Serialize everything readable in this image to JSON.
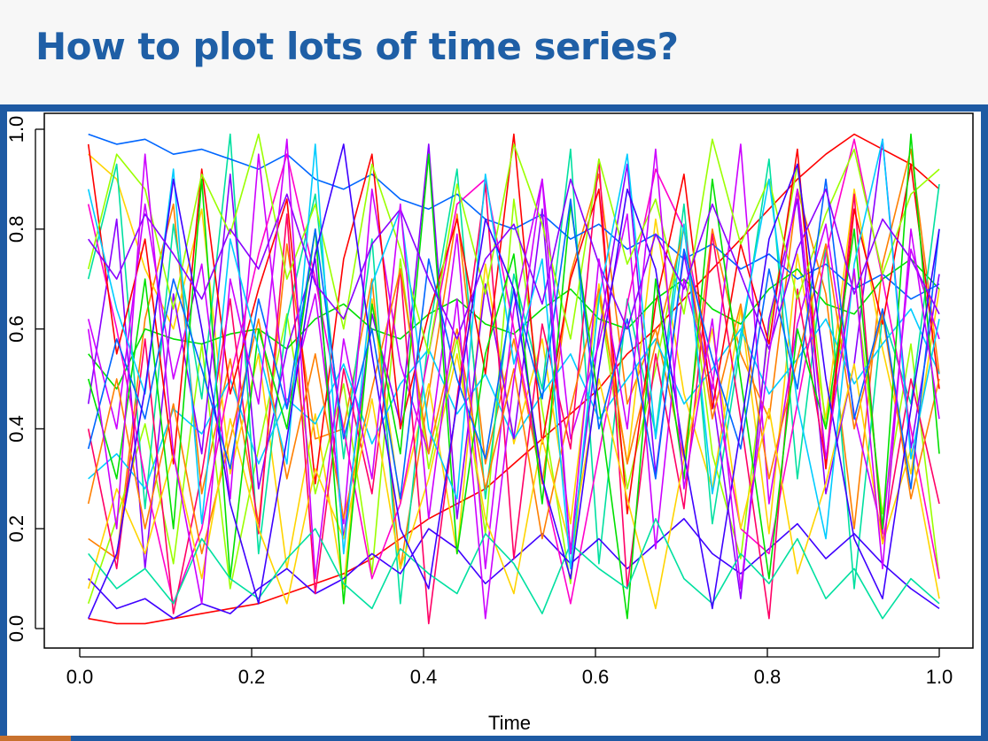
{
  "slide": {
    "title": "How to plot lots of time series?"
  },
  "colors": {
    "title": "#1f5fa6",
    "frame": "#1e5aa3",
    "header_bg": "#f7f7f7"
  },
  "chart_data": {
    "type": "line",
    "title": "",
    "xlabel": "Time",
    "ylabel": "",
    "xlim": [
      0.0,
      1.0
    ],
    "ylim": [
      0.0,
      1.0
    ],
    "x_ticks": [
      "0.0",
      "0.2",
      "0.4",
      "0.6",
      "0.8",
      "1.0"
    ],
    "y_ticks": [
      "0.0",
      "0.2",
      "0.4",
      "0.6",
      "0.8",
      "1.0"
    ],
    "grid": false,
    "legend": "none",
    "palette": [
      "#ff0000",
      "#ff7f00",
      "#ffd400",
      "#9aff00",
      "#00e000",
      "#00e0a0",
      "#00ccff",
      "#0066ff",
      "#3f00ff",
      "#8a00ff",
      "#cc00ff",
      "#ff00cc",
      "#ff0066"
    ],
    "series": [
      {
        "values": [
          0.02,
          0.01,
          0.01,
          0.02,
          0.03,
          0.04,
          0.05,
          0.07,
          0.09,
          0.11,
          0.14,
          0.18,
          0.22,
          0.25,
          0.28,
          0.33,
          0.38,
          0.43,
          0.48,
          0.55,
          0.6,
          0.66,
          0.72,
          0.78,
          0.84,
          0.9,
          0.95,
          0.99,
          0.96,
          0.93,
          0.88
        ]
      },
      {
        "values": [
          0.18,
          0.14,
          0.62,
          0.85,
          0.27,
          0.54,
          0.21,
          0.77,
          0.38,
          0.4,
          0.7,
          0.12,
          0.47,
          0.83,
          0.33,
          0.58,
          0.29,
          0.71,
          0.91,
          0.45,
          0.6,
          0.34,
          0.8,
          0.55,
          0.42,
          0.88,
          0.67,
          0.2,
          0.73,
          0.96,
          0.51
        ]
      },
      {
        "values": [
          0.95,
          0.9,
          0.72,
          0.6,
          0.84,
          0.31,
          0.55,
          0.12,
          0.43,
          0.08,
          0.66,
          0.25,
          0.49,
          0.15,
          0.73,
          0.37,
          0.58,
          0.21,
          0.69,
          0.33,
          0.82,
          0.47,
          0.28,
          0.64,
          0.19,
          0.75,
          0.42,
          0.88,
          0.56,
          0.31,
          0.68
        ]
      },
      {
        "values": [
          0.05,
          0.22,
          0.41,
          0.13,
          0.57,
          0.08,
          0.36,
          0.63,
          0.27,
          0.49,
          0.11,
          0.74,
          0.32,
          0.58,
          0.19,
          0.86,
          0.44,
          0.09,
          0.67,
          0.28,
          0.52,
          0.81,
          0.35,
          0.14,
          0.6,
          0.93,
          0.4,
          0.71,
          0.23,
          0.57,
          0.1
        ]
      },
      {
        "values": [
          0.55,
          0.48,
          0.6,
          0.58,
          0.57,
          0.59,
          0.6,
          0.56,
          0.62,
          0.65,
          0.6,
          0.58,
          0.63,
          0.66,
          0.61,
          0.59,
          0.64,
          0.68,
          0.62,
          0.6,
          0.66,
          0.7,
          0.64,
          0.61,
          0.68,
          0.72,
          0.65,
          0.63,
          0.7,
          0.74,
          0.68
        ]
      },
      {
        "values": [
          0.7,
          0.93,
          0.24,
          0.81,
          0.46,
          0.99,
          0.15,
          0.62,
          0.87,
          0.34,
          0.78,
          0.05,
          0.59,
          0.92,
          0.26,
          0.71,
          0.48,
          0.96,
          0.13,
          0.66,
          0.39,
          0.85,
          0.21,
          0.57,
          0.94,
          0.3,
          0.77,
          0.08,
          0.63,
          0.45,
          0.89
        ]
      },
      {
        "values": [
          0.3,
          0.35,
          0.28,
          0.44,
          0.39,
          0.5,
          0.33,
          0.46,
          0.41,
          0.53,
          0.37,
          0.49,
          0.56,
          0.43,
          0.51,
          0.38,
          0.47,
          0.55,
          0.42,
          0.5,
          0.58,
          0.45,
          0.52,
          0.6,
          0.47,
          0.54,
          0.62,
          0.49,
          0.57,
          0.64,
          0.51
        ]
      },
      {
        "values": [
          0.99,
          0.97,
          0.98,
          0.95,
          0.96,
          0.94,
          0.92,
          0.95,
          0.9,
          0.88,
          0.91,
          0.86,
          0.84,
          0.87,
          0.82,
          0.8,
          0.83,
          0.78,
          0.81,
          0.76,
          0.79,
          0.74,
          0.77,
          0.72,
          0.75,
          0.7,
          0.73,
          0.68,
          0.71,
          0.66,
          0.69
        ]
      },
      {
        "values": [
          0.1,
          0.04,
          0.06,
          0.02,
          0.05,
          0.03,
          0.08,
          0.12,
          0.07,
          0.1,
          0.15,
          0.11,
          0.2,
          0.16,
          0.09,
          0.14,
          0.19,
          0.13,
          0.18,
          0.12,
          0.17,
          0.22,
          0.15,
          0.11,
          0.16,
          0.21,
          0.14,
          0.19,
          0.13,
          0.08,
          0.04
        ]
      },
      {
        "values": [
          0.45,
          0.82,
          0.12,
          0.67,
          0.35,
          0.91,
          0.28,
          0.56,
          0.74,
          0.18,
          0.63,
          0.41,
          0.97,
          0.22,
          0.69,
          0.38,
          0.84,
          0.15,
          0.59,
          0.93,
          0.31,
          0.75,
          0.47,
          0.06,
          0.62,
          0.86,
          0.27,
          0.53,
          0.98,
          0.36,
          0.71
        ]
      },
      {
        "values": [
          0.62,
          0.4,
          0.85,
          0.5,
          0.73,
          0.26,
          0.95,
          0.44,
          0.67,
          0.21,
          0.88,
          0.53,
          0.35,
          0.79,
          0.12,
          0.64,
          0.9,
          0.38,
          0.57,
          0.83,
          0.16,
          0.7,
          0.48,
          0.97,
          0.25,
          0.61,
          0.81,
          0.43,
          0.19,
          0.76,
          0.58
        ]
      },
      {
        "values": [
          0.85,
          0.6,
          0.3,
          0.05,
          0.2,
          0.5,
          0.75,
          0.95,
          0.7,
          0.4,
          0.1,
          0.25,
          0.55,
          0.85,
          0.9,
          0.6,
          0.3,
          0.05,
          0.35,
          0.65,
          0.92,
          0.8,
          0.5,
          0.2,
          0.15,
          0.45,
          0.75,
          0.98,
          0.7,
          0.4,
          0.1
        ]
      },
      {
        "values": [
          0.4,
          0.12,
          0.58,
          0.03,
          0.31,
          0.66,
          0.19,
          0.83,
          0.07,
          0.52,
          0.27,
          0.72,
          0.01,
          0.46,
          0.89,
          0.14,
          0.61,
          0.36,
          0.94,
          0.08,
          0.55,
          0.24,
          0.79,
          0.42,
          0.02,
          0.68,
          0.33,
          0.87,
          0.17,
          0.5,
          0.25
        ]
      },
      {
        "values": [
          0.97,
          0.55,
          0.78,
          0.33,
          0.92,
          0.47,
          0.68,
          0.86,
          0.29,
          0.74,
          0.95,
          0.4,
          0.63,
          0.82,
          0.51,
          0.99,
          0.37,
          0.7,
          0.88,
          0.23,
          0.65,
          0.91,
          0.44,
          0.77,
          0.57,
          0.96,
          0.32,
          0.84,
          0.61,
          0.93,
          0.48
        ]
      },
      {
        "values": [
          0.25,
          0.5,
          0.2,
          0.45,
          0.15,
          0.38,
          0.62,
          0.3,
          0.55,
          0.22,
          0.48,
          0.72,
          0.35,
          0.6,
          0.28,
          0.52,
          0.18,
          0.44,
          0.68,
          0.33,
          0.57,
          0.8,
          0.42,
          0.65,
          0.3,
          0.54,
          0.77,
          0.4,
          0.63,
          0.26,
          0.5
        ]
      },
      {
        "values": [
          0.08,
          0.28,
          0.15,
          0.35,
          0.1,
          0.42,
          0.2,
          0.05,
          0.32,
          0.18,
          0.46,
          0.12,
          0.3,
          0.55,
          0.22,
          0.07,
          0.38,
          0.16,
          0.5,
          0.26,
          0.04,
          0.34,
          0.6,
          0.2,
          0.44,
          0.11,
          0.29,
          0.53,
          0.17,
          0.36,
          0.06
        ]
      },
      {
        "values": [
          0.72,
          0.95,
          0.88,
          0.64,
          0.91,
          0.79,
          0.99,
          0.7,
          0.85,
          0.6,
          0.93,
          0.76,
          0.55,
          0.89,
          0.67,
          0.97,
          0.81,
          0.58,
          0.94,
          0.73,
          0.86,
          0.63,
          0.98,
          0.77,
          0.9,
          0.66,
          0.83,
          0.96,
          0.71,
          0.87,
          0.92
        ]
      },
      {
        "values": [
          0.5,
          0.3,
          0.7,
          0.2,
          0.9,
          0.1,
          0.6,
          0.4,
          0.8,
          0.05,
          0.65,
          0.35,
          0.95,
          0.15,
          0.55,
          0.75,
          0.25,
          0.85,
          0.45,
          0.02,
          0.7,
          0.3,
          0.9,
          0.5,
          0.1,
          0.6,
          0.4,
          0.8,
          0.2,
          0.99,
          0.35
        ]
      },
      {
        "values": [
          0.15,
          0.08,
          0.12,
          0.05,
          0.18,
          0.1,
          0.06,
          0.14,
          0.2,
          0.09,
          0.04,
          0.16,
          0.11,
          0.07,
          0.19,
          0.13,
          0.03,
          0.17,
          0.12,
          0.08,
          0.22,
          0.1,
          0.05,
          0.15,
          0.09,
          0.18,
          0.06,
          0.12,
          0.02,
          0.1,
          0.05
        ]
      },
      {
        "values": [
          0.88,
          0.64,
          0.47,
          0.92,
          0.21,
          0.78,
          0.56,
          0.33,
          0.97,
          0.15,
          0.69,
          0.84,
          0.4,
          0.26,
          0.91,
          0.53,
          0.74,
          0.12,
          0.66,
          0.95,
          0.38,
          0.81,
          0.27,
          0.59,
          0.9,
          0.45,
          0.18,
          0.73,
          0.98,
          0.34,
          0.62
        ]
      },
      {
        "values": [
          0.36,
          0.58,
          0.42,
          0.7,
          0.52,
          0.32,
          0.66,
          0.44,
          0.8,
          0.38,
          0.6,
          0.26,
          0.74,
          0.5,
          0.34,
          0.68,
          0.46,
          0.86,
          0.4,
          0.62,
          0.3,
          0.76,
          0.54,
          0.36,
          0.72,
          0.48,
          0.9,
          0.42,
          0.64,
          0.28,
          0.8
        ]
      },
      {
        "values": [
          0.02,
          0.15,
          0.48,
          0.9,
          0.6,
          0.25,
          0.05,
          0.38,
          0.75,
          0.97,
          0.55,
          0.2,
          0.08,
          0.45,
          0.82,
          0.68,
          0.3,
          0.1,
          0.52,
          0.88,
          0.72,
          0.35,
          0.04,
          0.4,
          0.78,
          0.93,
          0.5,
          0.18,
          0.06,
          0.44,
          0.8
        ]
      },
      {
        "values": [
          0.78,
          0.7,
          0.83,
          0.75,
          0.66,
          0.8,
          0.72,
          0.87,
          0.69,
          0.62,
          0.77,
          0.84,
          0.7,
          0.58,
          0.74,
          0.81,
          0.65,
          0.9,
          0.73,
          0.6,
          0.79,
          0.68,
          0.85,
          0.71,
          0.56,
          0.76,
          0.88,
          0.67,
          0.82,
          0.74,
          0.63
        ]
      },
      {
        "values": [
          0.6,
          0.2,
          0.95,
          0.35,
          0.05,
          0.7,
          0.45,
          0.98,
          0.1,
          0.58,
          0.3,
          0.85,
          0.22,
          0.66,
          0.02,
          0.5,
          0.9,
          0.15,
          0.74,
          0.4,
          0.96,
          0.28,
          0.62,
          0.08,
          0.55,
          0.88,
          0.34,
          0.72,
          0.12,
          0.8,
          0.42
        ]
      }
    ]
  }
}
